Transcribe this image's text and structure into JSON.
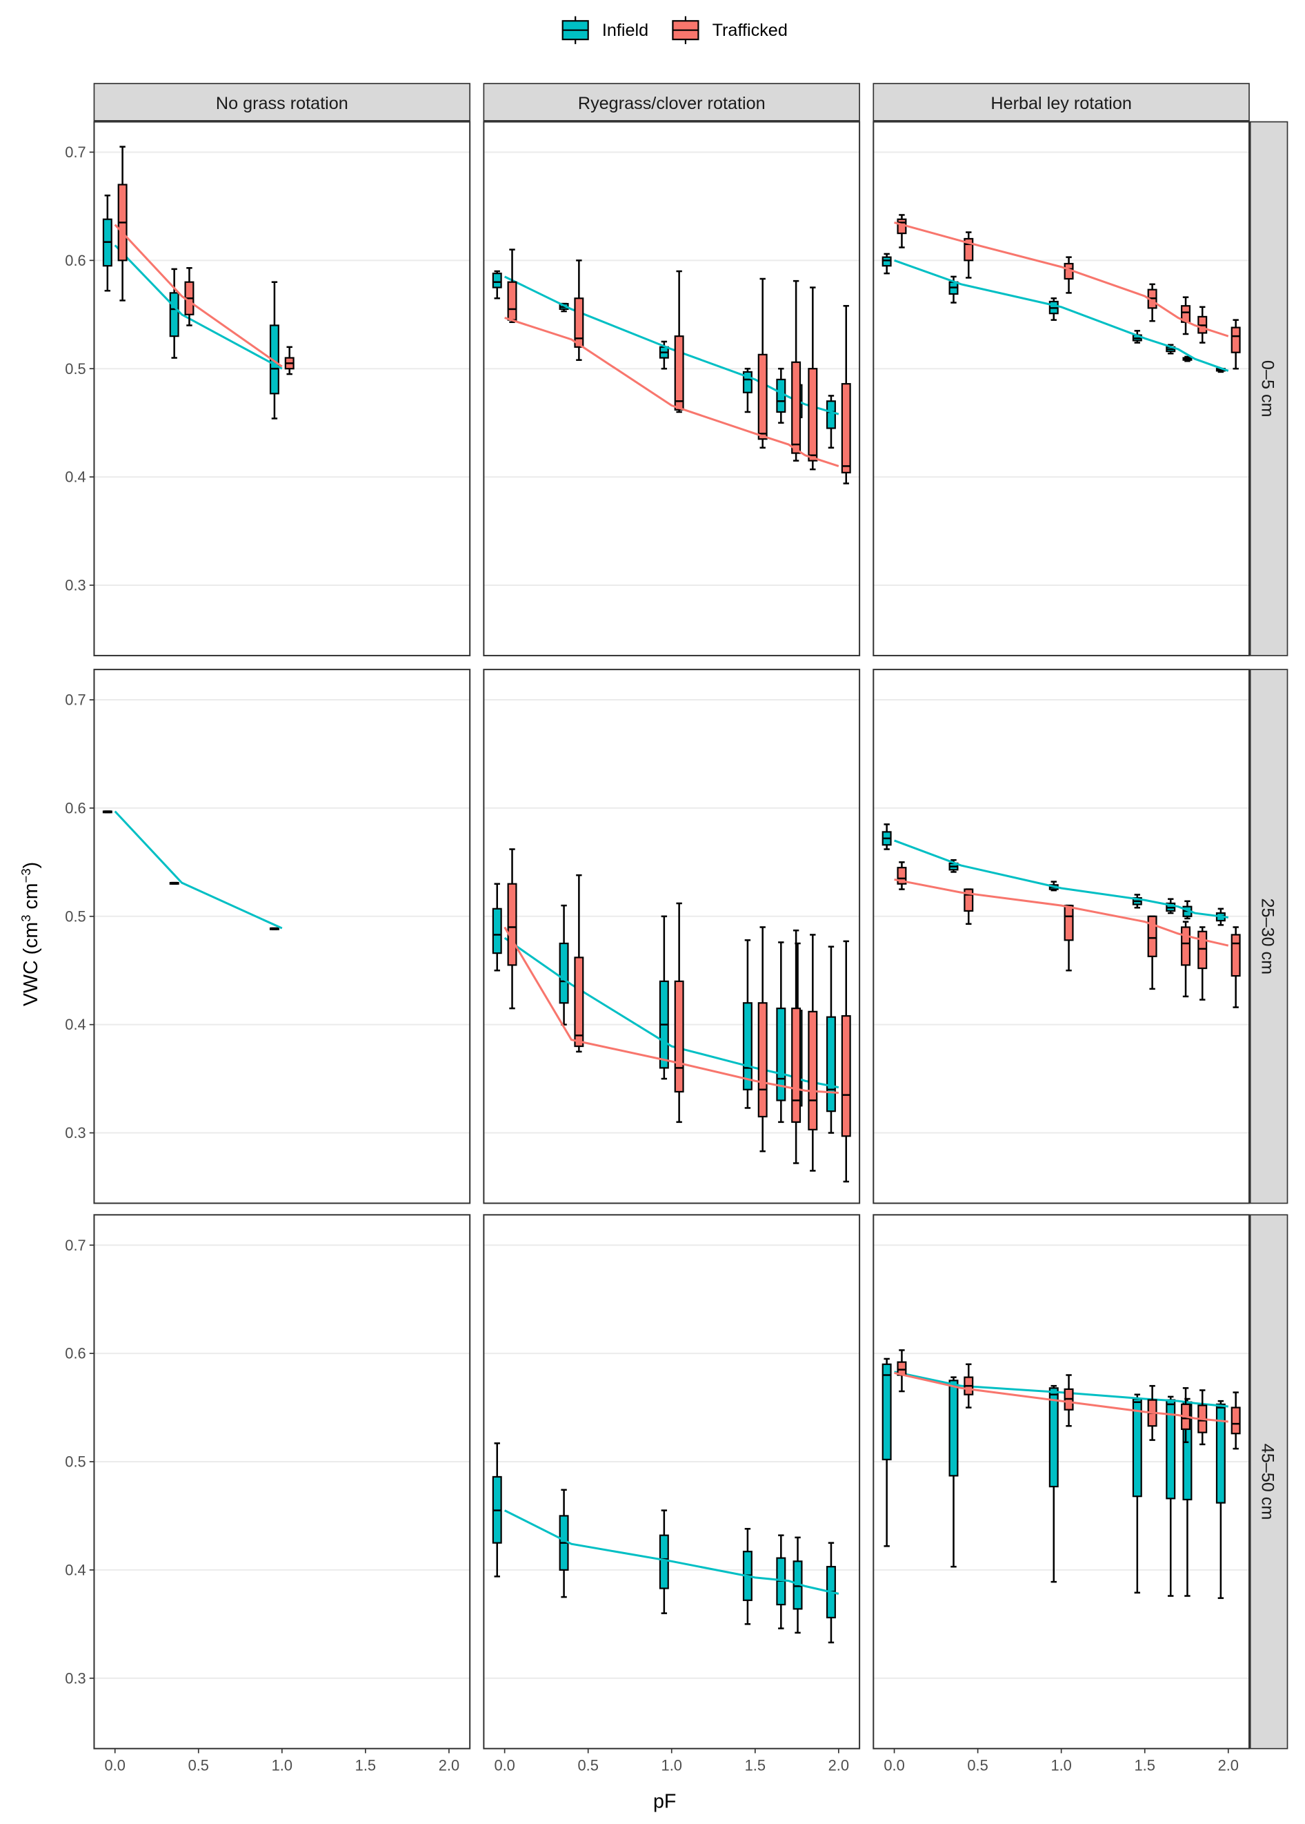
{
  "chart_data": {
    "type": "box+line",
    "xlabel": "pF",
    "ylabel": {
      "pre": "VWC (cm",
      "sup1": "3",
      "mid": " cm",
      "sup2": "−3",
      "post": ")"
    },
    "xlim": [
      -0.125,
      2.125
    ],
    "ylim": [
      0.235,
      0.728
    ],
    "xticks": [
      "0.0",
      "0.5",
      "1.0",
      "1.5",
      "2.0"
    ],
    "xtick_values": [
      0,
      0.5,
      1,
      1.5,
      2
    ],
    "yticks": [
      "0.3",
      "0.4",
      "0.5",
      "0.6",
      "0.7"
    ],
    "ytick_values": [
      0.3,
      0.4,
      0.5,
      0.6,
      0.7
    ],
    "columns": [
      "No grass rotation",
      "Ryegrass/clover rotation",
      "Herbal ley rotation"
    ],
    "rows": [
      "0–5 cm",
      "25–30 cm",
      "45–50 cm"
    ],
    "legend": {
      "position": "top",
      "entries": [
        {
          "name": "Infield",
          "color": "#00BFC4"
        },
        {
          "name": "Trafficked",
          "color": "#F8766D"
        }
      ]
    },
    "panels": [
      {
        "row": 0,
        "col": 0,
        "series": [
          {
            "name": "Infield",
            "x": [
              0,
              0.4,
              1.0
            ],
            "boxes": [
              [
                0.572,
                0.595,
                0.617,
                0.638,
                0.66
              ],
              [
                0.51,
                0.53,
                0.555,
                0.57,
                0.592
              ],
              [
                0.454,
                0.477,
                0.5,
                0.54,
                0.58
              ]
            ],
            "mean": [
              0.614,
              0.55,
              0.5
            ]
          },
          {
            "name": "Trafficked",
            "x": [
              0,
              0.4,
              1.0
            ],
            "boxes": [
              [
                0.563,
                0.6,
                0.635,
                0.67,
                0.705
              ],
              [
                0.54,
                0.55,
                0.565,
                0.58,
                0.593
              ],
              [
                0.495,
                0.5,
                0.505,
                0.51,
                0.52
              ]
            ],
            "mean": [
              0.633,
              0.567,
              0.502
            ]
          }
        ]
      },
      {
        "row": 0,
        "col": 1,
        "series": [
          {
            "name": "Infield",
            "x": [
              0,
              0.4,
              1.0,
              1.5,
              1.7,
              1.8,
              2.0
            ],
            "boxes": [
              [
                0.565,
                0.575,
                0.58,
                0.588,
                0.59
              ],
              [
                0.553,
                0.555,
                0.557,
                0.56,
                0.56
              ],
              [
                0.5,
                0.51,
                0.515,
                0.52,
                0.525
              ],
              [
                0.46,
                0.478,
                0.49,
                0.497,
                0.5
              ],
              [
                0.45,
                0.46,
                0.47,
                0.49,
                0.5
              ],
              [
                0.43,
                0.455,
                0.47,
                0.485,
                0.495
              ],
              [
                0.427,
                0.445,
                0.46,
                0.47,
                0.475
              ]
            ],
            "mean": [
              0.585,
              0.555,
              0.518,
              0.49,
              0.474,
              0.467,
              0.458
            ]
          },
          {
            "name": "Trafficked",
            "x": [
              0,
              0.4,
              1.0,
              1.5,
              1.7,
              1.8,
              2.0
            ],
            "boxes": [
              [
                0.543,
                0.545,
                0.555,
                0.58,
                0.61
              ],
              [
                0.508,
                0.52,
                0.528,
                0.565,
                0.6
              ],
              [
                0.46,
                0.462,
                0.47,
                0.53,
                0.59
              ],
              [
                0.427,
                0.435,
                0.44,
                0.513,
                0.583
              ],
              [
                0.415,
                0.422,
                0.43,
                0.506,
                0.581
              ],
              [
                0.407,
                0.415,
                0.42,
                0.5,
                0.575
              ],
              [
                0.394,
                0.404,
                0.41,
                0.486,
                0.558
              ]
            ],
            "mean": [
              0.547,
              0.527,
              0.466,
              0.44,
              0.43,
              0.42,
              0.41
            ]
          }
        ]
      },
      {
        "row": 0,
        "col": 2,
        "series": [
          {
            "name": "Infield",
            "x": [
              0,
              0.4,
              1.0,
              1.5,
              1.7,
              1.8,
              2.0
            ],
            "boxes": [
              [
                0.588,
                0.595,
                0.6,
                0.603,
                0.606
              ],
              [
                0.561,
                0.569,
                0.575,
                0.58,
                0.585
              ],
              [
                0.545,
                0.551,
                0.556,
                0.562,
                0.565
              ],
              [
                0.524,
                0.526,
                0.528,
                0.531,
                0.535
              ],
              [
                0.514,
                0.516,
                0.518,
                0.52,
                0.522
              ],
              [
                0.507,
                0.508,
                0.509,
                0.51,
                0.511
              ],
              [
                0.497,
                0.498,
                0.499,
                0.5,
                0.5
              ]
            ],
            "mean": [
              0.6,
              0.578,
              0.557,
              0.528,
              0.518,
              0.509,
              0.498
            ]
          },
          {
            "name": "Trafficked",
            "x": [
              0,
              0.4,
              1.0,
              1.5,
              1.7,
              1.8,
              2.0
            ],
            "boxes": [
              [
                0.612,
                0.625,
                0.635,
                0.638,
                0.642
              ],
              [
                0.584,
                0.6,
                0.615,
                0.62,
                0.626
              ],
              [
                0.57,
                0.583,
                0.592,
                0.597,
                0.603
              ],
              [
                0.544,
                0.556,
                0.565,
                0.573,
                0.578
              ],
              [
                0.532,
                0.543,
                0.552,
                0.558,
                0.566
              ],
              [
                0.524,
                0.533,
                0.54,
                0.548,
                0.557
              ],
              [
                0.5,
                0.515,
                0.53,
                0.538,
                0.545
              ]
            ],
            "mean": [
              0.635,
              0.618,
              0.594,
              0.567,
              0.547,
              0.54,
              0.53
            ]
          }
        ]
      },
      {
        "row": 1,
        "col": 0,
        "series": [
          {
            "name": "Infield",
            "x": [
              0,
              0.4,
              1.0
            ],
            "boxes": [
              [
                0.596,
                0.596,
                0.597,
                0.597,
                0.597
              ],
              [
                0.53,
                0.53,
                0.531,
                0.531,
                0.531
              ],
              [
                0.488,
                0.488,
                0.489,
                0.489,
                0.489
              ]
            ],
            "mean": [
              0.597,
              0.531,
              0.489
            ]
          }
        ]
      },
      {
        "row": 1,
        "col": 1,
        "series": [
          {
            "name": "Infield",
            "x": [
              0,
              0.4,
              1.0,
              1.5,
              1.7,
              1.8,
              2.0
            ],
            "boxes": [
              [
                0.45,
                0.466,
                0.483,
                0.507,
                0.53
              ],
              [
                0.4,
                0.42,
                0.44,
                0.475,
                0.51
              ],
              [
                0.35,
                0.36,
                0.4,
                0.44,
                0.5
              ],
              [
                0.323,
                0.34,
                0.36,
                0.42,
                0.478
              ],
              [
                0.31,
                0.33,
                0.35,
                0.415,
                0.476
              ],
              [
                0.31,
                0.325,
                0.35,
                0.413,
                0.475
              ],
              [
                0.3,
                0.32,
                0.34,
                0.407,
                0.472
              ]
            ],
            "mean": [
              0.48,
              0.437,
              0.38,
              0.36,
              0.353,
              0.348,
              0.342
            ]
          },
          {
            "name": "Trafficked",
            "x": [
              0,
              0.4,
              1.0,
              1.5,
              1.7,
              1.8,
              2.0
            ],
            "boxes": [
              [
                0.415,
                0.455,
                0.49,
                0.53,
                0.562
              ],
              [
                0.375,
                0.38,
                0.39,
                0.462,
                0.538
              ],
              [
                0.31,
                0.338,
                0.36,
                0.44,
                0.512
              ],
              [
                0.283,
                0.315,
                0.34,
                0.42,
                0.49
              ],
              [
                0.272,
                0.31,
                0.33,
                0.415,
                0.487
              ],
              [
                0.265,
                0.303,
                0.33,
                0.412,
                0.483
              ],
              [
                0.255,
                0.297,
                0.335,
                0.408,
                0.477
              ]
            ],
            "mean": [
              0.49,
              0.386,
              0.366,
              0.348,
              0.342,
              0.339,
              0.337
            ]
          }
        ]
      },
      {
        "row": 1,
        "col": 2,
        "series": [
          {
            "name": "Infield",
            "x": [
              0,
              0.4,
              1.0,
              1.5,
              1.7,
              1.8,
              2.0
            ],
            "boxes": [
              [
                0.562,
                0.566,
                0.572,
                0.578,
                0.585
              ],
              [
                0.541,
                0.543,
                0.546,
                0.549,
                0.552
              ],
              [
                0.524,
                0.525,
                0.527,
                0.529,
                0.532
              ],
              [
                0.508,
                0.511,
                0.514,
                0.517,
                0.52
              ],
              [
                0.503,
                0.505,
                0.508,
                0.512,
                0.516
              ],
              [
                0.498,
                0.5,
                0.505,
                0.509,
                0.514
              ],
              [
                0.492,
                0.496,
                0.5,
                0.503,
                0.507
              ]
            ],
            "mean": [
              0.57,
              0.547,
              0.526,
              0.515,
              0.509,
              0.503,
              0.499
            ]
          },
          {
            "name": "Trafficked",
            "x": [
              0,
              0.4,
              1.0,
              1.5,
              1.7,
              1.8,
              2.0
            ],
            "boxes": [
              [
                0.525,
                0.53,
                0.535,
                0.545,
                0.55
              ],
              [
                0.493,
                0.505,
                0.52,
                0.525,
                0.525
              ],
              [
                0.45,
                0.478,
                0.5,
                0.51,
                0.51
              ],
              [
                0.433,
                0.463,
                0.48,
                0.5,
                0.5
              ],
              [
                0.426,
                0.455,
                0.475,
                0.49,
                0.495
              ],
              [
                0.423,
                0.452,
                0.47,
                0.486,
                0.49
              ],
              [
                0.416,
                0.445,
                0.475,
                0.483,
                0.49
              ]
            ],
            "mean": [
              0.534,
              0.522,
              0.51,
              0.495,
              0.484,
              0.48,
              0.473
            ]
          }
        ]
      },
      {
        "row": 2,
        "col": 0,
        "series": []
      },
      {
        "row": 2,
        "col": 1,
        "series": [
          {
            "name": "Infield",
            "x": [
              0,
              0.4,
              1.0,
              1.5,
              1.7,
              1.8,
              2.0
            ],
            "boxes": [
              [
                0.394,
                0.425,
                0.455,
                0.486,
                0.517
              ],
              [
                0.375,
                0.4,
                0.425,
                0.45,
                0.474
              ],
              [
                0.36,
                0.383,
                0.41,
                0.432,
                0.455
              ],
              [
                0.35,
                0.372,
                0.395,
                0.417,
                0.438
              ],
              [
                0.346,
                0.368,
                0.39,
                0.411,
                0.432
              ],
              [
                0.342,
                0.364,
                0.385,
                0.408,
                0.43
              ],
              [
                0.333,
                0.356,
                0.38,
                0.403,
                0.425
              ]
            ],
            "mean": [
              0.455,
              0.424,
              0.408,
              0.393,
              0.39,
              0.385,
              0.378
            ]
          }
        ]
      },
      {
        "row": 2,
        "col": 2,
        "series": [
          {
            "name": "Infield",
            "x": [
              0,
              0.4,
              1.0,
              1.5,
              1.7,
              1.8,
              2.0
            ],
            "boxes": [
              [
                0.422,
                0.502,
                0.58,
                0.59,
                0.595
              ],
              [
                0.403,
                0.487,
                0.57,
                0.575,
                0.578
              ],
              [
                0.389,
                0.477,
                0.562,
                0.568,
                0.57
              ],
              [
                0.379,
                0.468,
                0.555,
                0.558,
                0.562
              ],
              [
                0.376,
                0.466,
                0.553,
                0.557,
                0.56
              ],
              [
                0.376,
                0.465,
                0.552,
                0.555,
                0.558
              ],
              [
                0.374,
                0.462,
                0.55,
                0.553,
                0.556
              ]
            ],
            "mean": [
              0.583,
              0.57,
              0.564,
              0.558,
              0.556,
              0.554,
              0.551
            ]
          },
          {
            "name": "Trafficked",
            "x": [
              0,
              0.4,
              1.0,
              1.5,
              1.7,
              1.8,
              2.0
            ],
            "boxes": [
              [
                0.565,
                0.58,
                0.585,
                0.592,
                0.603
              ],
              [
                0.55,
                0.562,
                0.57,
                0.578,
                0.59
              ],
              [
                0.533,
                0.548,
                0.558,
                0.567,
                0.58
              ],
              [
                0.52,
                0.533,
                0.545,
                0.557,
                0.57
              ],
              [
                0.518,
                0.53,
                0.54,
                0.553,
                0.568
              ],
              [
                0.516,
                0.527,
                0.538,
                0.552,
                0.566
              ],
              [
                0.512,
                0.526,
                0.535,
                0.55,
                0.564
              ]
            ],
            "mean": [
              0.582,
              0.568,
              0.556,
              0.546,
              0.543,
              0.54,
              0.537
            ]
          }
        ]
      }
    ]
  }
}
